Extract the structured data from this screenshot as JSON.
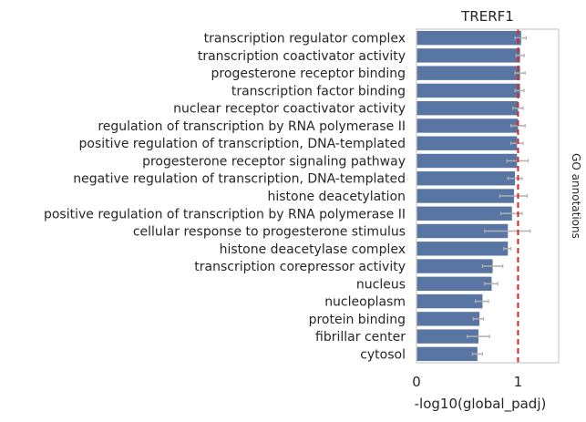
{
  "chart_data": {
    "type": "bar",
    "orientation": "horizontal",
    "title": "TRERF1",
    "xlabel": "-log10(global_padj)",
    "ylabel": "",
    "side_label": "GO annotations",
    "xlim": [
      0,
      1.4
    ],
    "xticks": [
      0,
      1
    ],
    "grid": false,
    "bar_color": "#5975a4",
    "error_color": "#b0b0b0",
    "reference_line": {
      "x": 1.0,
      "color": "#d62728",
      "style": "dashed"
    },
    "categories": [
      "transcription regulator complex",
      "transcription coactivator activity",
      "progesterone receptor binding",
      "transcription factor binding",
      "nuclear receptor coactivator activity",
      "regulation of transcription by RNA polymerase II",
      "positive regulation of transcription, DNA-templated",
      "progesterone receptor signaling pathway",
      "negative regulation of transcription, DNA-templated",
      "histone deacetylation",
      "positive regulation of transcription by RNA polymerase II",
      "cellular response to progesterone stimulus",
      "histone deacetylase complex",
      "transcription corepressor activity",
      "nucleus",
      "nucleoplasm",
      "protein binding",
      "fibrillar center",
      "cytosol"
    ],
    "values": [
      1.03,
      1.02,
      1.02,
      1.02,
      1.0,
      1.0,
      0.99,
      0.99,
      0.97,
      0.96,
      0.94,
      0.9,
      0.9,
      0.75,
      0.74,
      0.65,
      0.62,
      0.61,
      0.6
    ],
    "error_low": [
      0.97,
      0.98,
      0.97,
      0.97,
      0.95,
      0.93,
      0.93,
      0.89,
      0.9,
      0.82,
      0.83,
      0.67,
      0.86,
      0.65,
      0.67,
      0.58,
      0.56,
      0.5,
      0.55
    ],
    "error_high": [
      1.08,
      1.06,
      1.07,
      1.06,
      1.05,
      1.07,
      1.05,
      1.1,
      1.04,
      1.09,
      1.04,
      1.12,
      0.93,
      0.85,
      0.8,
      0.71,
      0.66,
      0.72,
      0.65
    ]
  }
}
